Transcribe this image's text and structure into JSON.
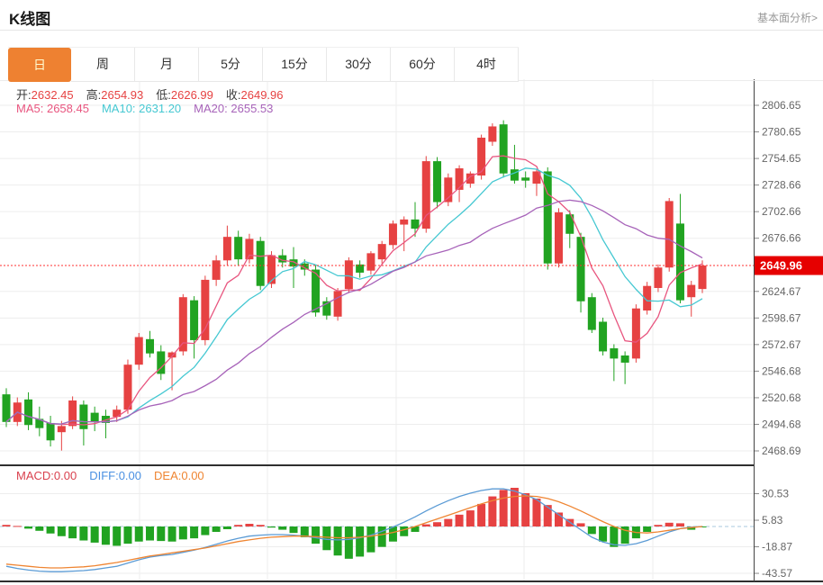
{
  "header": {
    "title": "K线图",
    "analysis_link": "基本面分析>"
  },
  "tabs": {
    "items": [
      {
        "label": "日",
        "active": true
      },
      {
        "label": "周",
        "active": false
      },
      {
        "label": "月",
        "active": false
      },
      {
        "label": "5分",
        "active": false
      },
      {
        "label": "15分",
        "active": false
      },
      {
        "label": "30分",
        "active": false
      },
      {
        "label": "60分",
        "active": false
      },
      {
        "label": "4时",
        "active": false
      }
    ]
  },
  "ohlc": {
    "open_label": "开:",
    "open": "2632.45",
    "high_label": "高:",
    "high": "2654.93",
    "low_label": "低:",
    "low": "2626.99",
    "close_label": "收:",
    "close": "2649.96"
  },
  "ma_legend": {
    "ma5_label": "MA5:",
    "ma5": "2658.45",
    "ma10_label": "MA10:",
    "ma10": "2631.20",
    "ma20_label": "MA20:",
    "ma20": "2655.53"
  },
  "macd_legend": {
    "macd_label": "MACD:",
    "macd": "0.00",
    "diff_label": "DIFF:",
    "diff": "0.00",
    "dea_label": "DEA:",
    "dea": "0.00"
  },
  "colors": {
    "up": "#e64242",
    "down": "#21a321",
    "ma5": "#e8557f",
    "ma10": "#45c8d2",
    "ma20": "#a763b9",
    "diff_line": "#5b9bd5",
    "dea_line": "#ef8532",
    "macd_text": "#d9414e",
    "diff_text": "#4a90e2",
    "dea_text": "#ef8532",
    "value_red": "#e64242",
    "label_dark": "#3c3c3c",
    "current_price_line": "#ff3232",
    "price_badge_bg": "#e60000",
    "price_badge_text": "#ffffff",
    "active_tab_bg": "#ee8131",
    "active_tab_text": "#fffbd0",
    "axis_text": "#666666",
    "grid": "#ededed",
    "zero_dash": "#aac8dc",
    "frame": "#2f2f2f"
  },
  "chart_data": {
    "type": "candlestick",
    "title": "K线图",
    "panels": [
      "price",
      "macd"
    ],
    "legend_position": "top-left",
    "grid": true,
    "price_axis": {
      "ticks": [
        2806.65,
        2780.65,
        2754.65,
        2728.66,
        2702.66,
        2676.66,
        2624.67,
        2598.67,
        2572.67,
        2546.68,
        2520.68,
        2494.68,
        2468.69
      ],
      "range": [
        2468.69,
        2806.65
      ],
      "current_price": 2649.96
    },
    "ma_windows": [
      5,
      10,
      20
    ],
    "candles": [
      [
        2524,
        2530,
        2492,
        2497
      ],
      [
        2497,
        2521,
        2493,
        2516
      ],
      [
        2519,
        2526,
        2489,
        2494
      ],
      [
        2500,
        2512,
        2483,
        2491
      ],
      [
        2496,
        2503,
        2473,
        2479
      ],
      [
        2487,
        2498,
        2469,
        2493
      ],
      [
        2493,
        2522,
        2490,
        2518
      ],
      [
        2514,
        2518,
        2474,
        2490
      ],
      [
        2506,
        2512,
        2488,
        2497
      ],
      [
        2503,
        2509,
        2481,
        2496
      ],
      [
        2502,
        2513,
        2497,
        2509
      ],
      [
        2509,
        2558,
        2505,
        2553
      ],
      [
        2553,
        2584,
        2548,
        2580
      ],
      [
        2578,
        2586,
        2560,
        2564
      ],
      [
        2566,
        2572,
        2538,
        2544
      ],
      [
        2560,
        2566,
        2528,
        2565
      ],
      [
        2566,
        2622,
        2562,
        2619
      ],
      [
        2616,
        2620,
        2559,
        2577
      ],
      [
        2577,
        2640,
        2572,
        2636
      ],
      [
        2636,
        2660,
        2630,
        2655
      ],
      [
        2655,
        2689,
        2650,
        2678
      ],
      [
        2678,
        2684,
        2650,
        2656
      ],
      [
        2656,
        2681,
        2652,
        2676
      ],
      [
        2674,
        2678,
        2626,
        2630
      ],
      [
        2632,
        2664,
        2628,
        2660
      ],
      [
        2660,
        2666,
        2648,
        2653
      ],
      [
        2656,
        2668,
        2628,
        2649
      ],
      [
        2652,
        2656,
        2640,
        2646
      ],
      [
        2646,
        2650,
        2600,
        2604
      ],
      [
        2615,
        2619,
        2597,
        2601
      ],
      [
        2600,
        2628,
        2596,
        2625
      ],
      [
        2627,
        2658,
        2623,
        2655
      ],
      [
        2651,
        2655,
        2638,
        2643
      ],
      [
        2645,
        2664,
        2641,
        2662
      ],
      [
        2656,
        2674,
        2652,
        2671
      ],
      [
        2670,
        2694,
        2666,
        2691
      ],
      [
        2690,
        2698,
        2664,
        2695
      ],
      [
        2695,
        2712,
        2678,
        2686
      ],
      [
        2686,
        2757,
        2682,
        2752
      ],
      [
        2752,
        2756,
        2706,
        2712
      ],
      [
        2712,
        2740,
        2708,
        2736
      ],
      [
        2724,
        2748,
        2712,
        2745
      ],
      [
        2730,
        2742,
        2726,
        2740
      ],
      [
        2738,
        2778,
        2734,
        2775
      ],
      [
        2771,
        2789,
        2767,
        2786
      ],
      [
        2788,
        2792,
        2736,
        2740
      ],
      [
        2744,
        2768,
        2730,
        2733
      ],
      [
        2736,
        2742,
        2726,
        2733
      ],
      [
        2730,
        2744,
        2718,
        2742
      ],
      [
        2742,
        2746,
        2646,
        2652
      ],
      [
        2652,
        2706,
        2648,
        2702
      ],
      [
        2700,
        2704,
        2667,
        2681
      ],
      [
        2678,
        2682,
        2604,
        2615
      ],
      [
        2619,
        2623,
        2584,
        2587
      ],
      [
        2595,
        2599,
        2562,
        2566
      ],
      [
        2569,
        2573,
        2537,
        2559
      ],
      [
        2562,
        2566,
        2534,
        2555
      ],
      [
        2559,
        2612,
        2555,
        2608
      ],
      [
        2606,
        2634,
        2602,
        2630
      ],
      [
        2628,
        2651,
        2624,
        2648
      ],
      [
        2648,
        2716,
        2644,
        2713
      ],
      [
        2691,
        2720,
        2613,
        2616
      ],
      [
        2619,
        2635,
        2600,
        2631
      ],
      [
        2627,
        2655,
        2623,
        2649.96
      ]
    ],
    "macd": {
      "ticks": [
        30.53,
        5.83,
        -18.87,
        -43.57
      ],
      "hist": [
        1.5,
        0.5,
        -2,
        -4,
        -6.5,
        -9,
        -11,
        -13,
        -15,
        -17,
        -18,
        -16,
        -14,
        -13,
        -13.5,
        -14,
        -12,
        -11,
        -8,
        -5,
        -2.5,
        1.5,
        2.5,
        1.5,
        -1,
        -3,
        -6,
        -10,
        -16,
        -22,
        -27,
        -30,
        -28,
        -24,
        -19,
        -14,
        -9,
        -5,
        2,
        4,
        7,
        11,
        15,
        21,
        28,
        34,
        36,
        31,
        26,
        20,
        13,
        7,
        3,
        -7,
        -14,
        -19,
        -16,
        -11,
        -5,
        1.5,
        3.5,
        3,
        -3,
        -0.5
      ],
      "diff": [
        -37,
        -39,
        -40.5,
        -41.5,
        -42,
        -42,
        -41.5,
        -41,
        -40,
        -38.5,
        -37,
        -34,
        -31,
        -28.5,
        -27,
        -26,
        -24,
        -22,
        -19.5,
        -16.5,
        -13.5,
        -11,
        -9,
        -8,
        -7.5,
        -7.5,
        -8,
        -9,
        -10.5,
        -12,
        -12.5,
        -12,
        -10.5,
        -8,
        -4.5,
        -0.5,
        4,
        9,
        14.5,
        19.5,
        24,
        28,
        31,
        33.5,
        35,
        35,
        33,
        29.5,
        25,
        18,
        11,
        4,
        -3,
        -10,
        -14.5,
        -17,
        -17.5,
        -16,
        -13,
        -9,
        -5,
        -2,
        -0.5,
        0
      ],
      "dea": [
        -35,
        -36,
        -37,
        -38,
        -38.5,
        -38.5,
        -38,
        -37.5,
        -36.5,
        -35,
        -33.5,
        -31.5,
        -29.5,
        -27.5,
        -26,
        -24.5,
        -23,
        -21.5,
        -20,
        -18,
        -16,
        -14,
        -12.5,
        -11,
        -10,
        -9.5,
        -9,
        -9,
        -9.5,
        -10,
        -10.5,
        -10.5,
        -10,
        -9,
        -7.5,
        -5.5,
        -3,
        0,
        3.5,
        7,
        10.5,
        14,
        17.5,
        21,
        24,
        26.5,
        28,
        28.5,
        28,
        26,
        23,
        19,
        14.5,
        9.5,
        4.5,
        0,
        -3.5,
        -5.5,
        -6,
        -5,
        -3.5,
        -2,
        -1,
        0
      ]
    }
  }
}
